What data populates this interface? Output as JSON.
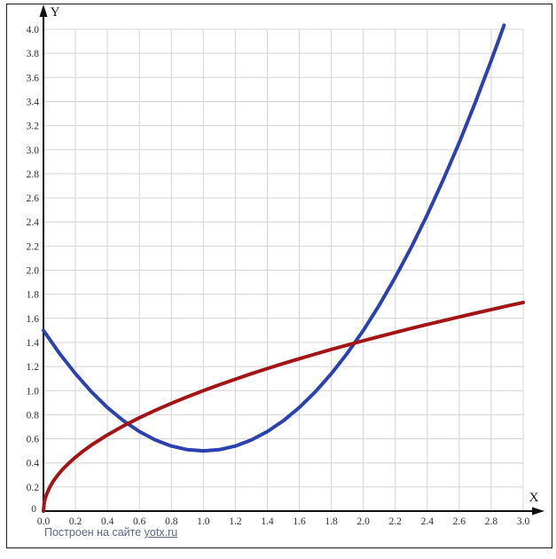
{
  "page": {
    "background": "#ffffff",
    "border_color": "#1a1a1a"
  },
  "chart_data": {
    "type": "line",
    "title": "",
    "xlabel": "X",
    "ylabel": "Y",
    "xlim": [
      0,
      3.0
    ],
    "ylim": [
      0,
      4.0
    ],
    "grid": true,
    "grid_color": "#d4d4d4",
    "axis_color": "#111111",
    "tick_label_color": "#2f2f2f",
    "legend": "none",
    "x_tick_labels": [
      "0.0",
      "0.2",
      "0.4",
      "0.6",
      "0.8",
      "1.0",
      "1.2",
      "1.4",
      "1.6",
      "1.8",
      "2.0",
      "2.2",
      "2.4",
      "2.6",
      "2.8",
      "3.0"
    ],
    "y_tick_labels": [
      "0.2",
      "0.4",
      "0.6",
      "0.8",
      "1.0",
      "1.2",
      "1.4",
      "1.6",
      "1.8",
      "2.0",
      "2.2",
      "2.4",
      "2.6",
      "2.8",
      "3.0",
      "3.2",
      "3.4",
      "3.6",
      "3.8",
      "4.0"
    ],
    "origin_label": "0",
    "series": [
      {
        "name": "blue-parabola-curve",
        "color": "#2b41ad",
        "stroke_width": 4,
        "points": [
          [
            0,
            1.5
          ],
          [
            0.1,
            1.31
          ],
          [
            0.2,
            1.14
          ],
          [
            0.3,
            0.99
          ],
          [
            0.4,
            0.86
          ],
          [
            0.5,
            0.75
          ],
          [
            0.6,
            0.66
          ],
          [
            0.7,
            0.59
          ],
          [
            0.8,
            0.54
          ],
          [
            0.9,
            0.51
          ],
          [
            1,
            0.5
          ],
          [
            1.1,
            0.51
          ],
          [
            1.2,
            0.54
          ],
          [
            1.3,
            0.59
          ],
          [
            1.4,
            0.66
          ],
          [
            1.5,
            0.75
          ],
          [
            1.6,
            0.86
          ],
          [
            1.7,
            0.99
          ],
          [
            1.8,
            1.14
          ],
          [
            1.9,
            1.31
          ],
          [
            2,
            1.5
          ],
          [
            2.1,
            1.71
          ],
          [
            2.2,
            1.94
          ],
          [
            2.3,
            2.19
          ],
          [
            2.4,
            2.46
          ],
          [
            2.5,
            2.75
          ],
          [
            2.6,
            3.06
          ],
          [
            2.7,
            3.39
          ],
          [
            2.8,
            3.74
          ],
          [
            2.85,
            3.923
          ],
          [
            2.88,
            4.034
          ]
        ]
      },
      {
        "name": "red-sqrt-curve",
        "color": "#a31515",
        "stroke_width": 4,
        "points": [
          [
            0,
            0
          ],
          [
            0.005,
            0.071
          ],
          [
            0.01,
            0.1
          ],
          [
            0.02,
            0.141
          ],
          [
            0.04,
            0.2
          ],
          [
            0.06,
            0.245
          ],
          [
            0.09,
            0.3
          ],
          [
            0.12,
            0.346
          ],
          [
            0.16,
            0.4
          ],
          [
            0.2,
            0.447
          ],
          [
            0.25,
            0.5
          ],
          [
            0.3,
            0.548
          ],
          [
            0.4,
            0.632
          ],
          [
            0.5,
            0.707
          ],
          [
            0.6,
            0.775
          ],
          [
            0.7,
            0.837
          ],
          [
            0.8,
            0.894
          ],
          [
            0.9,
            0.949
          ],
          [
            1,
            1
          ],
          [
            1.1,
            1.049
          ],
          [
            1.2,
            1.095
          ],
          [
            1.3,
            1.14
          ],
          [
            1.4,
            1.183
          ],
          [
            1.5,
            1.225
          ],
          [
            1.6,
            1.265
          ],
          [
            1.7,
            1.304
          ],
          [
            1.8,
            1.342
          ],
          [
            1.9,
            1.378
          ],
          [
            2,
            1.414
          ],
          [
            2.1,
            1.449
          ],
          [
            2.2,
            1.483
          ],
          [
            2.3,
            1.517
          ],
          [
            2.4,
            1.549
          ],
          [
            2.5,
            1.581
          ],
          [
            2.6,
            1.612
          ],
          [
            2.7,
            1.643
          ],
          [
            2.8,
            1.673
          ],
          [
            2.9,
            1.703
          ],
          [
            3,
            1.732
          ]
        ]
      }
    ]
  },
  "footer": {
    "prefix": "Построен на сайте ",
    "link_text": "yotx.ru",
    "color": "#5a6b8a"
  }
}
